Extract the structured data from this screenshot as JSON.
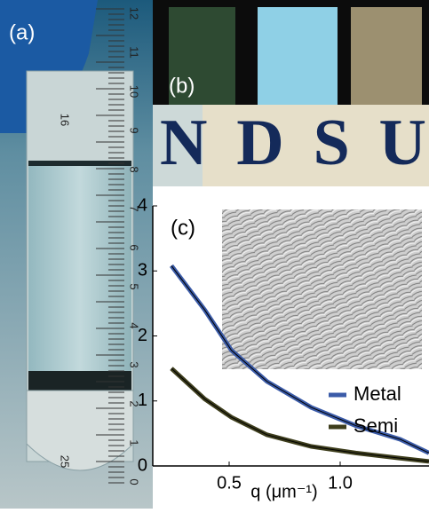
{
  "panels": {
    "a": "(a)",
    "b": "(b)",
    "c": "(c)",
    "sign": "NDSU",
    "ruler": [
      "12",
      "11",
      "10",
      "9",
      "8",
      "7",
      "6",
      "5",
      "4",
      "3",
      "2",
      "1",
      "0"
    ],
    "ruler_left": [
      "16",
      "25"
    ]
  },
  "chart_data": {
    "type": "line",
    "xlabel": "q (μm⁻¹)",
    "x": [
      0.24,
      0.39,
      0.51,
      0.67,
      0.87,
      1.07,
      1.27,
      1.4
    ],
    "series": [
      {
        "name": "Metal",
        "color": "#3b5ba8",
        "values": [
          3.08,
          2.4,
          1.78,
          1.3,
          0.9,
          0.62,
          0.41,
          0.2
        ]
      },
      {
        "name": "Semi",
        "color": "#3d3d1c",
        "values": [
          1.5,
          1.03,
          0.75,
          0.48,
          0.3,
          0.2,
          0.12,
          0.07
        ]
      }
    ],
    "xlim": [
      0.156,
      1.4
    ],
    "ylim": [
      0,
      4
    ],
    "xticks": [
      0.5,
      {
        "value": 1,
        "label": "1.0"
      }
    ],
    "yticks": [
      0,
      1,
      2,
      3,
      4
    ],
    "legend": "right"
  }
}
